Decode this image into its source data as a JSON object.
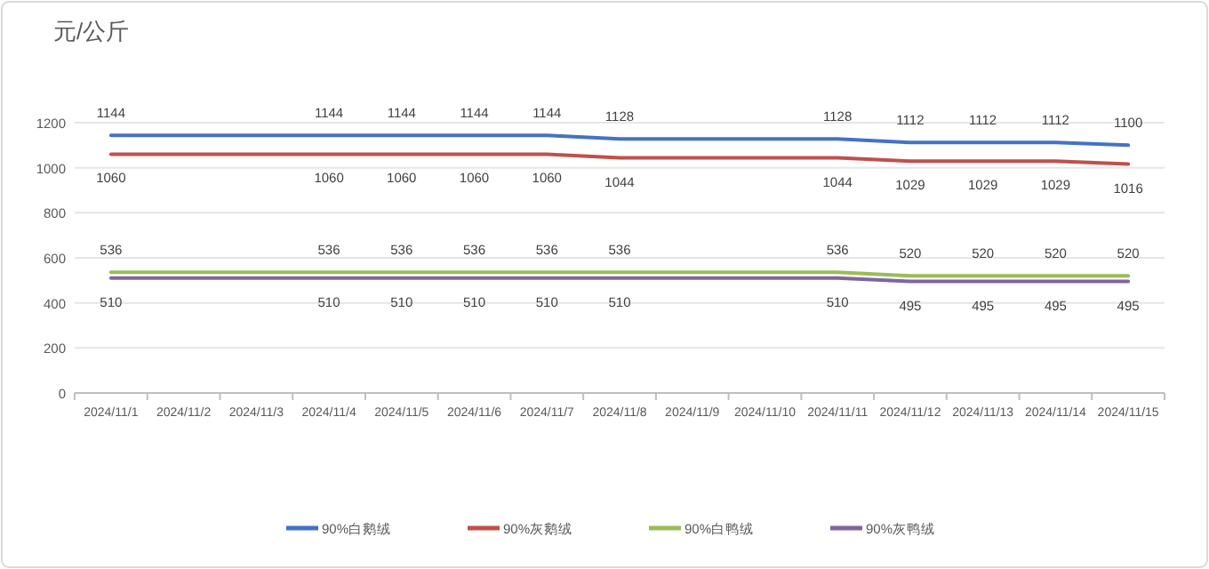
{
  "chart_data": {
    "type": "line",
    "ylabel": "元/公斤",
    "categories": [
      "2024/11/1",
      "2024/11/2",
      "2024/11/3",
      "2024/11/4",
      "2024/11/5",
      "2024/11/6",
      "2024/11/7",
      "2024/11/8",
      "2024/11/9",
      "2024/11/10",
      "2024/11/11",
      "2024/11/12",
      "2024/11/13",
      "2024/11/14",
      "2024/11/15"
    ],
    "series": [
      {
        "name": "90%白鹅绒",
        "color": "#4472c4",
        "values": [
          1144,
          1144,
          1144,
          1144,
          1144,
          1144,
          1144,
          1128,
          1128,
          1128,
          1128,
          1112,
          1112,
          1112,
          1100
        ],
        "value_labels": [
          "1144",
          null,
          null,
          "1144",
          "1144",
          "1144",
          "1144",
          "1128",
          null,
          null,
          "1128",
          "1112",
          "1112",
          "1112",
          "1100"
        ]
      },
      {
        "name": "90%灰鹅绒",
        "color": "#c0504d",
        "values": [
          1060,
          1060,
          1060,
          1060,
          1060,
          1060,
          1060,
          1044,
          1044,
          1044,
          1044,
          1029,
          1029,
          1029,
          1016
        ],
        "value_labels": [
          "1060",
          null,
          null,
          "1060",
          "1060",
          "1060",
          "1060",
          "1044",
          null,
          null,
          "1044",
          "1029",
          "1029",
          "1029",
          "1016"
        ]
      },
      {
        "name": "90%白鸭绒",
        "color": "#9bbb59",
        "values": [
          536,
          536,
          536,
          536,
          536,
          536,
          536,
          536,
          536,
          536,
          536,
          520,
          520,
          520,
          520
        ],
        "value_labels": [
          "536",
          null,
          null,
          "536",
          "536",
          "536",
          "536",
          "536",
          null,
          null,
          "536",
          "520",
          "520",
          "520",
          "520"
        ]
      },
      {
        "name": "90%灰鸭绒",
        "color": "#8064a2",
        "values": [
          510,
          510,
          510,
          510,
          510,
          510,
          510,
          510,
          510,
          510,
          510,
          495,
          495,
          495,
          495
        ],
        "value_labels": [
          "510",
          null,
          null,
          "510",
          "510",
          "510",
          "510",
          "510",
          null,
          null,
          "510",
          "495",
          "495",
          "495",
          "495"
        ]
      }
    ],
    "ylim": [
      0,
      1200
    ],
    "yticks": [
      0,
      200,
      400,
      600,
      800,
      1000,
      1200
    ],
    "grid": "y",
    "legend": "bottom"
  }
}
